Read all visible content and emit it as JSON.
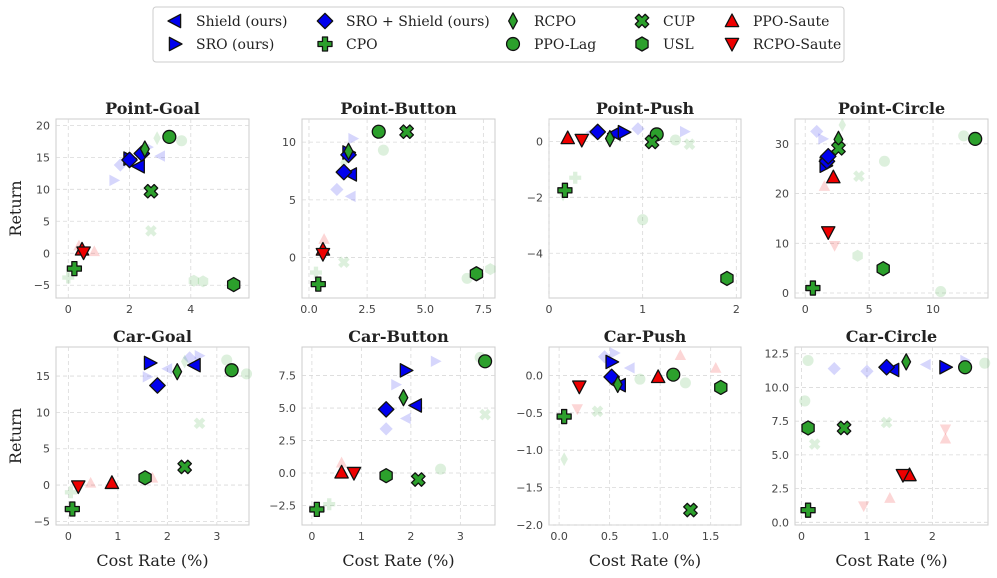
{
  "legend": [
    {
      "name": "Shield (ours)",
      "marker": "tri-left",
      "color": "#0000ee"
    },
    {
      "name": "SRO (ours)",
      "marker": "tri-right",
      "color": "#0000ee"
    },
    {
      "name": "SRO + Shield (ours)",
      "marker": "diamond",
      "color": "#0000ee"
    },
    {
      "name": "CPO",
      "marker": "plus",
      "color": "#2ca02c"
    },
    {
      "name": "RCPO",
      "marker": "thin-diamond",
      "color": "#2ca02c"
    },
    {
      "name": "PPO-Lag",
      "marker": "circle",
      "color": "#2ca02c"
    },
    {
      "name": "CUP",
      "marker": "x",
      "color": "#2ca02c"
    },
    {
      "name": "USL",
      "marker": "hexagon",
      "color": "#2ca02c"
    },
    {
      "name": "PPO-Saute",
      "marker": "tri-up",
      "color": "#ee0000"
    },
    {
      "name": "RCPO-Saute",
      "marker": "tri-down",
      "color": "#ee0000"
    }
  ],
  "chart_data": [
    {
      "type": "scatter",
      "title": "Point-Goal",
      "xlabel": "",
      "ylabel": "Return",
      "xlim": [
        -0.4,
        5.9
      ],
      "ylim": [
        -7,
        21
      ],
      "xticks": [
        0,
        2,
        4
      ],
      "yticks": [
        -5,
        0,
        5,
        10,
        15,
        20
      ],
      "points": [
        {
          "s": "Shield (ours)",
          "x": 2.3,
          "y": 13.6
        },
        {
          "s": "SRO (ours)",
          "x": 2.0,
          "y": 14.8
        },
        {
          "s": "SRO + Shield (ours)",
          "x": 2.0,
          "y": 14.6
        },
        {
          "s": "SRO + Shield (ours)",
          "x": 2.4,
          "y": 15.6
        },
        {
          "s": "CPO",
          "x": 0.2,
          "y": -2.4
        },
        {
          "s": "RCPO",
          "x": 2.5,
          "y": 16.3
        },
        {
          "s": "PPO-Lag",
          "x": 3.3,
          "y": 18.2
        },
        {
          "s": "CUP",
          "x": 2.7,
          "y": 9.7
        },
        {
          "s": "USL",
          "x": 5.4,
          "y": -4.9
        },
        {
          "s": "PPO-Saute",
          "x": 0.45,
          "y": 0.6
        },
        {
          "s": "RCPO-Saute",
          "x": 0.5,
          "y": 0.1
        }
      ],
      "faded": [
        {
          "s": "Shield (ours)",
          "x": 3.0,
          "y": 15.2
        },
        {
          "s": "SRO (ours)",
          "x": 2.6,
          "y": 16.6
        },
        {
          "s": "SRO + Shield (ours)",
          "x": 1.7,
          "y": 13.8
        },
        {
          "s": "SRO (ours)",
          "x": 1.5,
          "y": 11.4
        },
        {
          "s": "RCPO",
          "x": 2.9,
          "y": 18.0
        },
        {
          "s": "PPO-Lag",
          "x": 3.7,
          "y": 17.6
        },
        {
          "s": "CUP",
          "x": 2.7,
          "y": 3.5
        },
        {
          "s": "USL",
          "x": 4.1,
          "y": -4.3
        },
        {
          "s": "USL",
          "x": 4.4,
          "y": -4.4
        },
        {
          "s": "PPO-Saute",
          "x": 0.85,
          "y": 0.3
        },
        {
          "s": "PPO-Saute",
          "x": 0.35,
          "y": 1.2
        },
        {
          "s": "CPO",
          "x": 0.0,
          "y": -3.8
        }
      ]
    },
    {
      "type": "scatter",
      "title": "Point-Button",
      "xlabel": "",
      "ylabel": "",
      "xlim": [
        -0.3,
        8.0
      ],
      "ylim": [
        -3.5,
        12
      ],
      "xticks": [
        0.0,
        2.5,
        5.0,
        7.5
      ],
      "yticks": [
        0,
        5,
        10
      ],
      "points": [
        {
          "s": "Shield (ours)",
          "x": 1.8,
          "y": 7.2
        },
        {
          "s": "SRO (ours)",
          "x": 1.7,
          "y": 9.1
        },
        {
          "s": "SRO + Shield (ours)",
          "x": 1.5,
          "y": 7.4
        },
        {
          "s": "SRO + Shield (ours)",
          "x": 1.7,
          "y": 8.9
        },
        {
          "s": "CPO",
          "x": 0.4,
          "y": -2.3
        },
        {
          "s": "RCPO",
          "x": 1.7,
          "y": 9.2
        },
        {
          "s": "PPO-Lag",
          "x": 3.0,
          "y": 10.9
        },
        {
          "s": "CUP",
          "x": 4.2,
          "y": 10.9
        },
        {
          "s": "USL",
          "x": 7.2,
          "y": -1.4
        },
        {
          "s": "PPO-Saute",
          "x": 0.6,
          "y": 0.7
        },
        {
          "s": "RCPO-Saute",
          "x": 0.6,
          "y": 0.3
        }
      ],
      "faded": [
        {
          "s": "SRO + Shield (ours)",
          "x": 1.2,
          "y": 5.9
        },
        {
          "s": "SRO (ours)",
          "x": 1.9,
          "y": 10.3
        },
        {
          "s": "Shield (ours)",
          "x": 1.8,
          "y": 5.3
        },
        {
          "s": "PPO-Lag",
          "x": 3.2,
          "y": 9.3
        },
        {
          "s": "RCPO",
          "x": 1.5,
          "y": 8.2
        },
        {
          "s": "CUP",
          "x": 1.5,
          "y": -0.4
        },
        {
          "s": "USL",
          "x": 7.8,
          "y": -1.0
        },
        {
          "s": "PPO-Lag",
          "x": 6.8,
          "y": -1.8
        },
        {
          "s": "PPO-Saute",
          "x": 0.65,
          "y": 1.6
        },
        {
          "s": "CPO",
          "x": 0.3,
          "y": -1.3
        }
      ]
    },
    {
      "type": "scatter",
      "title": "Point-Push",
      "xlabel": "",
      "ylabel": "",
      "xlim": [
        0.0,
        2.05
      ],
      "ylim": [
        -5.6,
        0.8
      ],
      "xticks": [
        0,
        1,
        2
      ],
      "yticks": [
        -4,
        -2,
        0
      ],
      "points": [
        {
          "s": "Shield (ours)",
          "x": 0.7,
          "y": 0.28
        },
        {
          "s": "SRO (ours)",
          "x": 0.8,
          "y": 0.33
        },
        {
          "s": "SRO + Shield (ours)",
          "x": 0.52,
          "y": 0.34
        },
        {
          "s": "CPO",
          "x": 0.17,
          "y": -1.75
        },
        {
          "s": "RCPO",
          "x": 0.65,
          "y": 0.1
        },
        {
          "s": "PPO-Lag",
          "x": 1.15,
          "y": 0.25
        },
        {
          "s": "CUP",
          "x": 1.1,
          "y": -0.02
        },
        {
          "s": "USL",
          "x": 1.9,
          "y": -4.9
        },
        {
          "s": "PPO-Saute",
          "x": 0.2,
          "y": 0.12
        },
        {
          "s": "RCPO-Saute",
          "x": 0.35,
          "y": 0.05
        }
      ],
      "faded": [
        {
          "s": "SRO + Shield (ours)",
          "x": 0.95,
          "y": 0.45
        },
        {
          "s": "SRO (ours)",
          "x": 1.45,
          "y": 0.35
        },
        {
          "s": "Shield (ours)",
          "x": 0.45,
          "y": 0.32
        },
        {
          "s": "PPO-Lag",
          "x": 1.0,
          "y": -2.8
        },
        {
          "s": "CPO",
          "x": 0.28,
          "y": -1.3
        },
        {
          "s": "PPO-Lag",
          "x": 1.35,
          "y": 0.05
        },
        {
          "s": "CUP",
          "x": 1.5,
          "y": -0.1
        },
        {
          "s": "RCPO",
          "x": 0.15,
          "y": -1.9
        }
      ]
    },
    {
      "type": "scatter",
      "title": "Point-Circle",
      "xlabel": "",
      "ylabel": "",
      "xlim": [
        -0.8,
        14.3
      ],
      "ylim": [
        -1,
        35
      ],
      "xticks": [
        0,
        5,
        10
      ],
      "yticks": [
        0,
        10,
        20,
        30
      ],
      "points": [
        {
          "s": "Shield (ours)",
          "x": 1.7,
          "y": 27.3
        },
        {
          "s": "SRO (ours)",
          "x": 1.6,
          "y": 25.6
        },
        {
          "s": "SRO + Shield (ours)",
          "x": 1.7,
          "y": 26.5
        },
        {
          "s": "SRO + Shield (ours)",
          "x": 1.8,
          "y": 27.5
        },
        {
          "s": "CPO",
          "x": 0.6,
          "y": 1.0
        },
        {
          "s": "RCPO",
          "x": 2.6,
          "y": 30.9
        },
        {
          "s": "PPO-Lag",
          "x": 13.3,
          "y": 31.0
        },
        {
          "s": "CUP",
          "x": 2.6,
          "y": 29.1
        },
        {
          "s": "USL",
          "x": 6.1,
          "y": 4.9
        },
        {
          "s": "PPO-Saute",
          "x": 2.2,
          "y": 23.3
        },
        {
          "s": "RCPO-Saute",
          "x": 1.8,
          "y": 12.2
        }
      ],
      "faded": [
        {
          "s": "SRO + Shield (ours)",
          "x": 0.9,
          "y": 32.5
        },
        {
          "s": "SRO (ours)",
          "x": 1.4,
          "y": 31.0
        },
        {
          "s": "PPO-Lag",
          "x": 12.4,
          "y": 31.6
        },
        {
          "s": "PPO-Lag",
          "x": 6.2,
          "y": 26.5
        },
        {
          "s": "USL",
          "x": 4.1,
          "y": 7.5
        },
        {
          "s": "CUP",
          "x": 4.2,
          "y": 23.5
        },
        {
          "s": "PPO-Lag",
          "x": 10.6,
          "y": 0.3
        },
        {
          "s": "RCPO-Saute",
          "x": 2.3,
          "y": 9.5
        },
        {
          "s": "PPO-Saute",
          "x": 1.5,
          "y": 21.5
        },
        {
          "s": "RCPO",
          "x": 2.9,
          "y": 33.8
        }
      ]
    },
    {
      "type": "scatter",
      "title": "Car-Goal",
      "xlabel": "Cost Rate (%)",
      "ylabel": "Return",
      "xlim": [
        -0.25,
        3.65
      ],
      "ylim": [
        -5.5,
        19
      ],
      "xticks": [
        0,
        1,
        2,
        3
      ],
      "yticks": [
        -5,
        0,
        5,
        10,
        15
      ],
      "points": [
        {
          "s": "Shield (ours)",
          "x": 2.55,
          "y": 16.5
        },
        {
          "s": "SRO (ours)",
          "x": 1.65,
          "y": 16.8
        },
        {
          "s": "SRO + Shield (ours)",
          "x": 1.8,
          "y": 13.7
        },
        {
          "s": "CPO",
          "x": 0.08,
          "y": -3.3
        },
        {
          "s": "RCPO",
          "x": 2.2,
          "y": 15.6
        },
        {
          "s": "PPO-Lag",
          "x": 3.3,
          "y": 15.8
        },
        {
          "s": "CUP",
          "x": 2.35,
          "y": 2.5
        },
        {
          "s": "USL",
          "x": 1.55,
          "y": 1.0
        },
        {
          "s": "PPO-Saute",
          "x": 0.88,
          "y": 0.3
        },
        {
          "s": "RCPO-Saute",
          "x": 0.2,
          "y": -0.2
        }
      ],
      "faded": [
        {
          "s": "SRO (ours)",
          "x": 2.65,
          "y": 17.8
        },
        {
          "s": "SRO (ours)",
          "x": 1.6,
          "y": 14.9
        },
        {
          "s": "SRO + Shield (ours)",
          "x": 2.45,
          "y": 17.5
        },
        {
          "s": "Shield (ours)",
          "x": 2.0,
          "y": 16.0
        },
        {
          "s": "RCPO",
          "x": 2.35,
          "y": 17.0
        },
        {
          "s": "PPO-Lag",
          "x": 3.2,
          "y": 17.2
        },
        {
          "s": "PPO-Lag",
          "x": 3.6,
          "y": 15.3
        },
        {
          "s": "CUP",
          "x": 2.65,
          "y": 8.5
        },
        {
          "s": "PPO-Saute",
          "x": 0.45,
          "y": 0.3
        },
        {
          "s": "PPO-Saute",
          "x": 1.7,
          "y": 1.0
        },
        {
          "s": "CPO",
          "x": 0.05,
          "y": -1.0
        }
      ]
    },
    {
      "type": "scatter",
      "title": "Car-Button",
      "xlabel": "Cost Rate (%)",
      "ylabel": "",
      "xlim": [
        -0.2,
        3.7
      ],
      "ylim": [
        -4,
        9.7
      ],
      "xticks": [
        0,
        1,
        2,
        3
      ],
      "yticks": [
        -2.5,
        0.0,
        2.5,
        5.0,
        7.5
      ],
      "points": [
        {
          "s": "Shield (ours)",
          "x": 2.1,
          "y": 5.2
        },
        {
          "s": "SRO (ours)",
          "x": 1.9,
          "y": 7.9
        },
        {
          "s": "SRO + Shield (ours)",
          "x": 1.5,
          "y": 4.9
        },
        {
          "s": "CPO",
          "x": 0.1,
          "y": -2.8
        },
        {
          "s": "RCPO",
          "x": 1.85,
          "y": 5.8
        },
        {
          "s": "PPO-Lag",
          "x": 3.5,
          "y": 8.6
        },
        {
          "s": "CUP",
          "x": 2.15,
          "y": -0.5
        },
        {
          "s": "USL",
          "x": 1.5,
          "y": -0.2
        },
        {
          "s": "PPO-Saute",
          "x": 0.6,
          "y": 0.05
        },
        {
          "s": "RCPO-Saute",
          "x": 0.85,
          "y": 0.0
        }
      ],
      "faded": [
        {
          "s": "SRO + Shield (ours)",
          "x": 1.5,
          "y": 3.4
        },
        {
          "s": "SRO (ours)",
          "x": 2.5,
          "y": 8.6
        },
        {
          "s": "SRO (ours)",
          "x": 1.7,
          "y": 6.8
        },
        {
          "s": "Shield (ours)",
          "x": 1.9,
          "y": 4.2
        },
        {
          "s": "PPO-Lag",
          "x": 3.4,
          "y": 8.9
        },
        {
          "s": "CUP",
          "x": 3.5,
          "y": 4.5
        },
        {
          "s": "PPO-Lag",
          "x": 2.6,
          "y": 0.3
        },
        {
          "s": "PPO-Saute",
          "x": 0.6,
          "y": 0.8
        },
        {
          "s": "CPO",
          "x": 0.35,
          "y": -2.4
        }
      ]
    },
    {
      "type": "scatter",
      "title": "Car-Push",
      "xlabel": "Cost Rate (%)",
      "ylabel": "",
      "xlim": [
        -0.1,
        1.8
      ],
      "ylim": [
        -2.0,
        0.38
      ],
      "xticks": [
        0.0,
        0.5,
        1.0,
        1.5
      ],
      "yticks": [
        -2.0,
        -1.5,
        -1.0,
        -0.5,
        0.0
      ],
      "points": [
        {
          "s": "Shield (ours)",
          "x": 0.6,
          "y": -0.13
        },
        {
          "s": "SRO (ours)",
          "x": 0.52,
          "y": 0.18
        },
        {
          "s": "SRO + Shield (ours)",
          "x": 0.52,
          "y": -0.02
        },
        {
          "s": "CPO",
          "x": 0.05,
          "y": -0.55
        },
        {
          "s": "RCPO",
          "x": 0.58,
          "y": -0.12
        },
        {
          "s": "PPO-Lag",
          "x": 1.13,
          "y": 0.01
        },
        {
          "s": "CUP",
          "x": 1.3,
          "y": -1.8
        },
        {
          "s": "USL",
          "x": 1.6,
          "y": -0.16
        },
        {
          "s": "PPO-Saute",
          "x": 0.98,
          "y": -0.02
        },
        {
          "s": "RCPO-Saute",
          "x": 0.2,
          "y": -0.15
        }
      ],
      "faded": [
        {
          "s": "SRO + Shield (ours)",
          "x": 0.45,
          "y": 0.25
        },
        {
          "s": "SRO (ours)",
          "x": 0.55,
          "y": 0.3
        },
        {
          "s": "Shield (ours)",
          "x": 0.7,
          "y": 0.1
        },
        {
          "s": "PPO-Lag",
          "x": 1.25,
          "y": -0.1
        },
        {
          "s": "PPO-Lag",
          "x": 0.8,
          "y": -0.05
        },
        {
          "s": "CUP",
          "x": 0.38,
          "y": -0.48
        },
        {
          "s": "RCPO",
          "x": 0.05,
          "y": -1.12
        },
        {
          "s": "PPO-Saute",
          "x": 1.2,
          "y": 0.27
        },
        {
          "s": "PPO-Saute",
          "x": 1.55,
          "y": 0.1
        },
        {
          "s": "RCPO-Saute",
          "x": 0.18,
          "y": -0.45
        }
      ]
    },
    {
      "type": "scatter",
      "title": "Car-Circle",
      "xlabel": "Cost Rate (%)",
      "ylabel": "",
      "xlim": [
        -0.1,
        2.85
      ],
      "ylim": [
        -0.2,
        13
      ],
      "xticks": [
        0,
        1,
        2
      ],
      "yticks": [
        0.0,
        2.5,
        5.0,
        7.5,
        10.0,
        12.5
      ],
      "points": [
        {
          "s": "Shield (ours)",
          "x": 1.4,
          "y": 11.3
        },
        {
          "s": "SRO (ours)",
          "x": 2.2,
          "y": 11.5
        },
        {
          "s": "SRO + Shield (ours)",
          "x": 1.3,
          "y": 11.5
        },
        {
          "s": "CPO",
          "x": 0.1,
          "y": 0.9
        },
        {
          "s": "RCPO",
          "x": 1.6,
          "y": 11.9
        },
        {
          "s": "PPO-Lag",
          "x": 2.5,
          "y": 11.5
        },
        {
          "s": "CUP",
          "x": 0.65,
          "y": 7.0
        },
        {
          "s": "USL",
          "x": 0.1,
          "y": 7.0
        },
        {
          "s": "PPO-Saute",
          "x": 1.65,
          "y": 3.5
        },
        {
          "s": "RCPO-Saute",
          "x": 1.55,
          "y": 3.5
        }
      ],
      "faded": [
        {
          "s": "SRO + Shield (ours)",
          "x": 0.5,
          "y": 11.4
        },
        {
          "s": "SRO + Shield (ours)",
          "x": 1.0,
          "y": 11.2
        },
        {
          "s": "SRO (ours)",
          "x": 2.5,
          "y": 12.0
        },
        {
          "s": "Shield (ours)",
          "x": 1.9,
          "y": 11.7
        },
        {
          "s": "PPO-Lag",
          "x": 0.05,
          "y": 9.0
        },
        {
          "s": "PPO-Lag",
          "x": 0.1,
          "y": 12.0
        },
        {
          "s": "PPO-Lag",
          "x": 2.8,
          "y": 11.8
        },
        {
          "s": "CUP",
          "x": 1.3,
          "y": 7.4
        },
        {
          "s": "CUP",
          "x": 0.2,
          "y": 5.8
        },
        {
          "s": "PPO-Saute",
          "x": 2.2,
          "y": 6.2
        },
        {
          "s": "RCPO-Saute",
          "x": 2.2,
          "y": 6.9
        },
        {
          "s": "PPO-Saute",
          "x": 1.35,
          "y": 1.8
        },
        {
          "s": "RCPO-Saute",
          "x": 0.95,
          "y": 1.2
        }
      ]
    }
  ]
}
